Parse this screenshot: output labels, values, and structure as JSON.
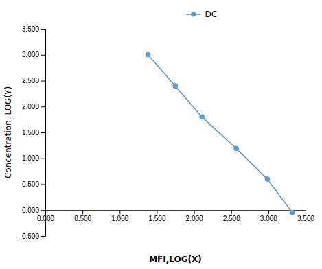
{
  "chart_data": {
    "type": "line",
    "x": [
      1.38,
      1.748,
      2.107,
      2.568,
      2.987,
      3.322
    ],
    "series": [
      {
        "name": "DC",
        "color": "#5b9bd5",
        "marker": "circle",
        "line_style": "solid",
        "values": [
          3.0,
          2.398,
          1.799,
          1.19,
          0.6,
          -0.046
        ]
      }
    ],
    "xlabel": "MFI,LOG(X)",
    "ylabel": "Concentration, LOG(Y)",
    "xlim": [
      0.0,
      3.5
    ],
    "ylim": [
      -0.5,
      3.5
    ],
    "xticks": [
      {
        "value": 0.0,
        "label": "0.000"
      },
      {
        "value": 0.5,
        "label": "0.500"
      },
      {
        "value": 1.0,
        "label": "1.000"
      },
      {
        "value": 1.5,
        "label": "1.500"
      },
      {
        "value": 2.0,
        "label": "2.000"
      },
      {
        "value": 2.5,
        "label": "2.500"
      },
      {
        "value": 3.0,
        "label": "3.000"
      },
      {
        "value": 3.5,
        "label": "3.500"
      }
    ],
    "yticks": [
      {
        "value": -0.5,
        "label": "-0.500"
      },
      {
        "value": 0.0,
        "label": "0.000"
      },
      {
        "value": 0.5,
        "label": "0.500"
      },
      {
        "value": 1.0,
        "label": "1.000"
      },
      {
        "value": 1.5,
        "label": "1.500"
      },
      {
        "value": 2.0,
        "label": "2.000"
      },
      {
        "value": 2.5,
        "label": "2.500"
      },
      {
        "value": 3.0,
        "label": "3.000"
      },
      {
        "value": 3.5,
        "label": "3.500"
      }
    ],
    "grid": false,
    "legend": "top"
  }
}
